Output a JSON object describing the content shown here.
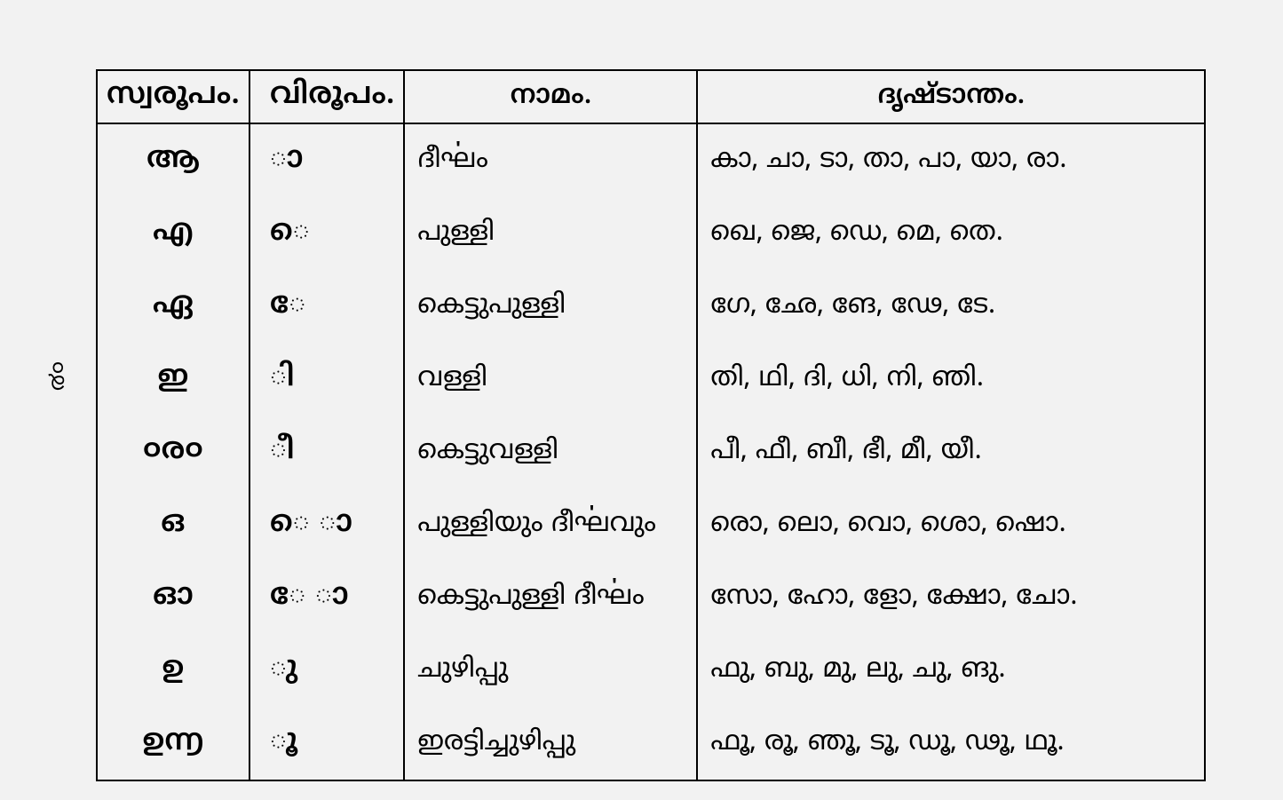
{
  "page_number": "൪൦",
  "headers": {
    "col1": "സ്വരൂപം.",
    "col2": "വിരൂപം.",
    "col3": "നാമം.",
    "col4": "ദൃഷ്ടാന്തം."
  },
  "rows": [
    {
      "svarupa": "ആ",
      "virupa": "ാ",
      "nama": "ദീൎഘം",
      "example": "കാ,  ചാ,  ടാ,  താ,  പാ,  യാ,  രാ."
    },
    {
      "svarupa": "എ",
      "virupa": "െ",
      "nama": "പുള്ളി",
      "example": "ഖെ,   ജെ,   ഡെ,   മെ,   തെ."
    },
    {
      "svarupa": "ഏ",
      "virupa": "േ",
      "nama": "കെട്ടുപുള്ളി",
      "example": "ഗേ,   ഛേ,   ങേ,   ഢേ,   ടേ."
    },
    {
      "svarupa": "ഇ",
      "virupa": "ി",
      "nama": "വള്ളി",
      "example": "തി,  ഥി,  ദി,  ധി,  നി,  ഞി."
    },
    {
      "svarupa": "൦ര൦",
      "virupa": "ീ",
      "nama": "കെട്ടുവള്ളി",
      "example": "പീ,  ഫീ,  ബീ,  ഭീ,  മീ,  യീ."
    },
    {
      "svarupa": "ഒ",
      "virupa": "െ ാ",
      "nama": "പുള്ളിയും ദീൎഘവും",
      "example": "രൊ, ലൊ,  വൊ,  ശൊ,  ഷൊ."
    },
    {
      "svarupa": "ഓ",
      "virupa": "േ ാ",
      "nama": "കെട്ടുപുള്ളി ദീൎഘം",
      "example": "സോ,  ഹോ,  ളോ,  ക്ഷോ,  ചോ."
    },
    {
      "svarupa": "ഉ",
      "virupa": "ു",
      "nama": "ചുഴിപ്പു",
      "example": "ഫു,   ബു,   മു,   ലു,   ചു,   ങു."
    },
    {
      "svarupa": "ഉ൬",
      "virupa": "ൂ",
      "nama": "ഇരട്ടിച്ചുഴിപ്പു",
      "example": "ഫൂ,  രൂ,  ഞൂ,  ടൂ,  ഡൂ,  ഢൂ,  ഥൂ."
    }
  ]
}
